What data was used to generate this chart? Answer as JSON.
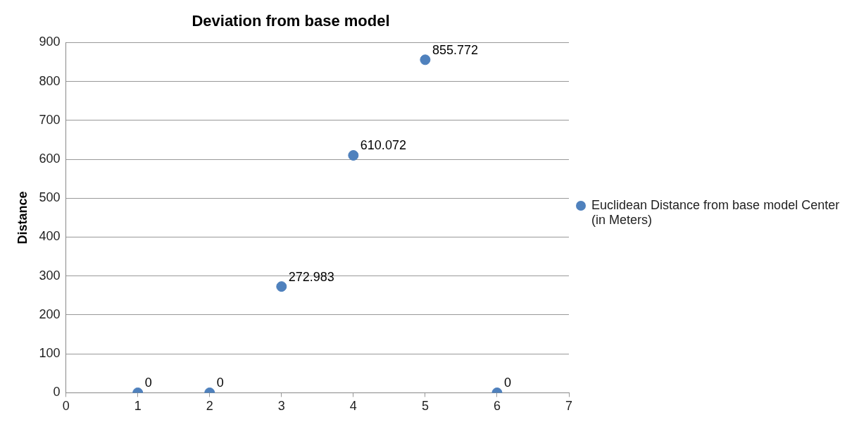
{
  "chart_data": {
    "type": "scatter",
    "title": "Deviation from base model",
    "ylabel": "Distance",
    "x": [
      1,
      2,
      3,
      4,
      5,
      6
    ],
    "series": [
      {
        "name": "Euclidean Distance from base model Center (in Meters)",
        "color": "#4f81bd",
        "values": [
          0,
          0,
          272.983,
          610.072,
          855.772,
          0
        ]
      }
    ],
    "xlim": [
      0,
      7
    ],
    "xticks": [
      0,
      1,
      2,
      3,
      4,
      5,
      6,
      7
    ],
    "ylim": [
      0,
      900
    ],
    "yticks": [
      0,
      100,
      200,
      300,
      400,
      500,
      600,
      700,
      800,
      900
    ],
    "grid": "y",
    "legend": "right",
    "marker": "circle",
    "data_labels": true
  }
}
